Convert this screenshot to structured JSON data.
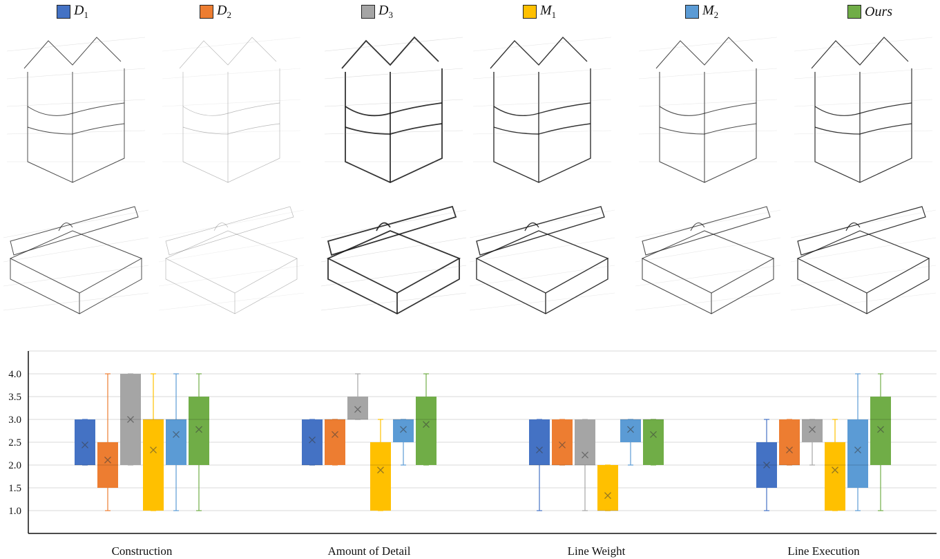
{
  "legend": [
    {
      "base": "D",
      "sub": "1",
      "color": "#4472C4"
    },
    {
      "base": "D",
      "sub": "2",
      "color": "#ED7D31"
    },
    {
      "base": "D",
      "sub": "3",
      "color": "#A5A5A5"
    },
    {
      "base": "M",
      "sub": "1",
      "color": "#FFC000"
    },
    {
      "base": "M",
      "sub": "2",
      "color": "#5B9BD5"
    },
    {
      "base": "Ours",
      "sub": "",
      "color": "#70AD47"
    }
  ],
  "sketch_rows": [
    {
      "subject": "house-box",
      "columns": 6
    },
    {
      "subject": "hinged-box",
      "columns": 6
    }
  ],
  "chart_data": {
    "type": "boxplot",
    "categories": [
      "Construction",
      "Amount of Detail",
      "Line Weight",
      "Line Execution"
    ],
    "yticks": [
      "1.0",
      "1.5",
      "2.0",
      "2.5",
      "3.0",
      "3.5",
      "4.0"
    ],
    "ylim": [
      0.5,
      4.5
    ],
    "grid": true,
    "legend_position": "top",
    "series": [
      {
        "name": "D1",
        "color": "#4472C4",
        "boxes": [
          {
            "min": 2,
            "q1": 2,
            "median": 2,
            "q3": 3,
            "max": 3,
            "mean": 2.44
          },
          {
            "min": 2,
            "q1": 2,
            "median": 2,
            "q3": 3,
            "max": 3,
            "mean": 2.55
          },
          {
            "min": 1,
            "q1": 2,
            "median": 2,
            "q3": 3,
            "max": 3,
            "mean": 2.33
          },
          {
            "min": 1,
            "q1": 1.5,
            "median": 2,
            "q3": 2.5,
            "max": 3,
            "mean": 2.0
          }
        ]
      },
      {
        "name": "D2",
        "color": "#ED7D31",
        "boxes": [
          {
            "min": 1,
            "q1": 1.5,
            "median": 2,
            "q3": 2.5,
            "max": 4,
            "mean": 2.11
          },
          {
            "min": 2,
            "q1": 2,
            "median": 3,
            "q3": 3,
            "max": 3,
            "mean": 2.67
          },
          {
            "min": 2,
            "q1": 2,
            "median": 2,
            "q3": 3,
            "max": 3,
            "mean": 2.44
          },
          {
            "min": 2,
            "q1": 2,
            "median": 2,
            "q3": 3,
            "max": 3,
            "mean": 2.33
          }
        ]
      },
      {
        "name": "D3",
        "color": "#A5A5A5",
        "boxes": [
          {
            "min": 2,
            "q1": 2,
            "median": 3,
            "q3": 4,
            "max": 4,
            "mean": 3.0
          },
          {
            "min": 3,
            "q1": 3,
            "median": 3,
            "q3": 3.5,
            "max": 4,
            "mean": 3.22
          },
          {
            "min": 1,
            "q1": 2,
            "median": 2,
            "q3": 3,
            "max": 3,
            "mean": 2.22
          },
          {
            "min": 2,
            "q1": 2.5,
            "median": 3,
            "q3": 3,
            "max": 3,
            "mean": 2.78
          }
        ]
      },
      {
        "name": "M1",
        "color": "#FFC000",
        "boxes": [
          {
            "min": 1,
            "q1": 1,
            "median": 3,
            "q3": 3,
            "max": 4,
            "mean": 2.33
          },
          {
            "min": 1,
            "q1": 1,
            "median": 2,
            "q3": 2.5,
            "max": 3,
            "mean": 1.89
          },
          {
            "min": 1,
            "q1": 1,
            "median": 1,
            "q3": 2,
            "max": 2,
            "mean": 1.33
          },
          {
            "min": 1,
            "q1": 1,
            "median": 2,
            "q3": 2.5,
            "max": 3,
            "mean": 1.89
          }
        ]
      },
      {
        "name": "M2",
        "color": "#5B9BD5",
        "boxes": [
          {
            "min": 1,
            "q1": 2,
            "median": 3,
            "q3": 3,
            "max": 4,
            "mean": 2.67
          },
          {
            "min": 2,
            "q1": 2.5,
            "median": 3,
            "q3": 3,
            "max": 3,
            "mean": 2.78
          },
          {
            "min": 2,
            "q1": 2.5,
            "median": 3,
            "q3": 3,
            "max": 3,
            "mean": 2.78
          },
          {
            "min": 1,
            "q1": 1.5,
            "median": 2,
            "q3": 3,
            "max": 4,
            "mean": 2.33
          }
        ]
      },
      {
        "name": "Ours",
        "color": "#70AD47",
        "boxes": [
          {
            "min": 1,
            "q1": 2,
            "median": 3,
            "q3": 3.5,
            "max": 4,
            "mean": 2.78
          },
          {
            "min": 2,
            "q1": 2,
            "median": 3,
            "q3": 3.5,
            "max": 4,
            "mean": 2.89
          },
          {
            "min": 2,
            "q1": 2,
            "median": 3,
            "q3": 3,
            "max": 3,
            "mean": 2.67
          },
          {
            "min": 1,
            "q1": 2,
            "median": 3,
            "q3": 3.5,
            "max": 4,
            "mean": 2.78
          }
        ]
      }
    ]
  }
}
